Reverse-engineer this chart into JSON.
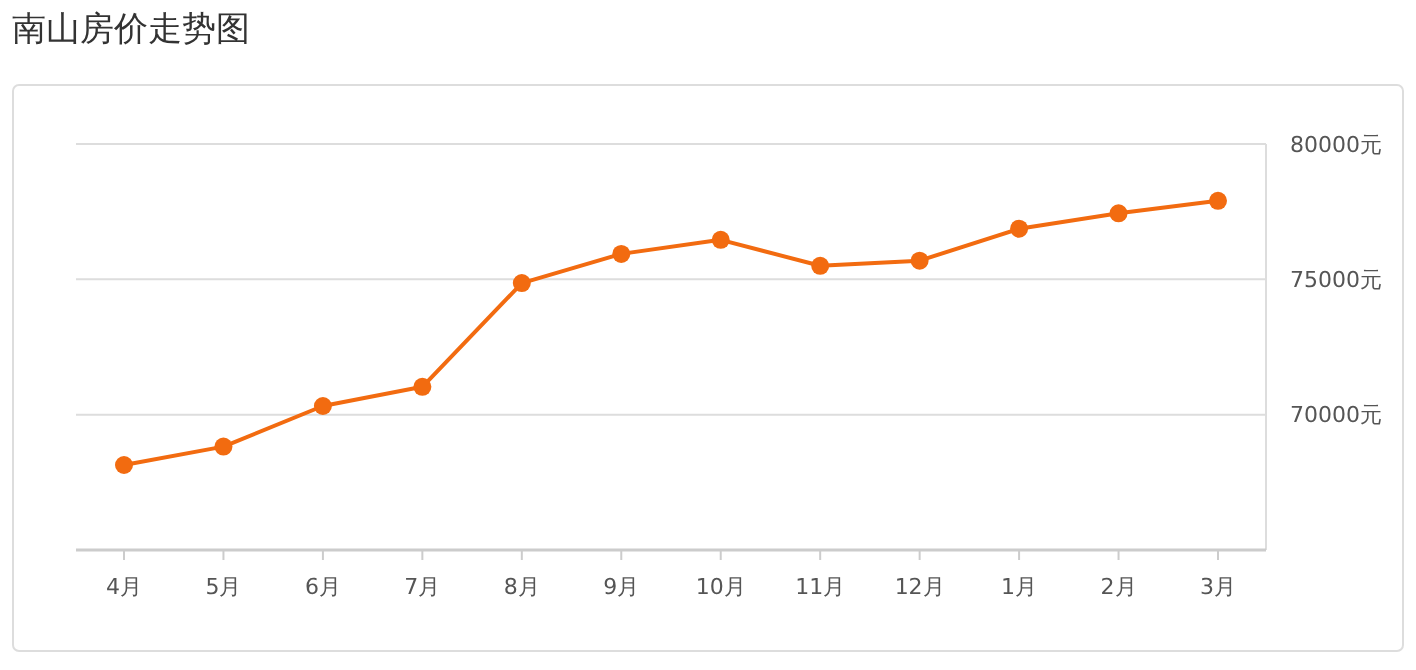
{
  "chart_data": {
    "type": "line",
    "title": "南山房价走势图",
    "categories": [
      "4月",
      "5月",
      "6月",
      "7月",
      "8月",
      "9月",
      "10月",
      "11月",
      "12月",
      "1月",
      "2月",
      "3月"
    ],
    "series": [
      {
        "color": "#f26b10",
        "values": [
          68140,
          68820,
          70320,
          71030,
          74860,
          75940,
          76460,
          75500,
          75690,
          76870,
          77440,
          77900
        ]
      }
    ],
    "ylim": [
      65000,
      80000
    ],
    "yticks": [
      {
        "value": 70000,
        "label": "70000元"
      },
      {
        "value": 75000,
        "label": "75000元"
      },
      {
        "value": 80000,
        "label": "80000元"
      }
    ],
    "grid": "y",
    "marker": "circle",
    "line_style": "solid"
  }
}
